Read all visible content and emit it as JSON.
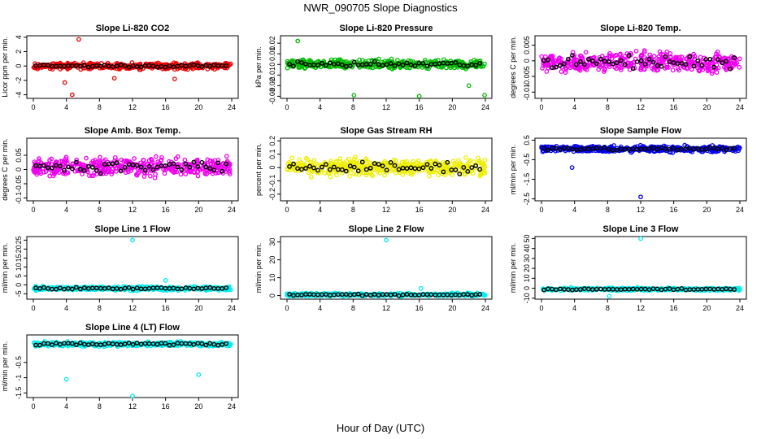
{
  "figure": {
    "title": "NWR_090705  Slope Diagnostics",
    "xlabel": "Hour of Day (UTC)"
  },
  "chart_data": [
    {
      "type": "scatter",
      "title": "Slope Li-820 CO2",
      "ylabel": "Licor ppm per min.",
      "xlim": [
        0,
        24
      ],
      "xticks": [
        0,
        4,
        8,
        12,
        16,
        20,
        24
      ],
      "ylim": [
        -4.5,
        4.2
      ],
      "yticks": [
        -4,
        -2,
        0,
        2,
        4
      ],
      "color": "#ee0000",
      "center": 0,
      "spread": 0.6,
      "ref_spread": 0.25,
      "outliers": [
        {
          "x": 5.5,
          "y": 3.7
        },
        {
          "x": 4.7,
          "y": -4.0
        },
        {
          "x": 3.8,
          "y": -2.3
        },
        {
          "x": 9.8,
          "y": -1.7
        },
        {
          "x": 17.1,
          "y": -1.8
        }
      ]
    },
    {
      "type": "scatter",
      "title": "Slope Li-820 Pressure",
      "ylabel": "kPa per min.",
      "xlim": [
        0,
        24
      ],
      "xticks": [
        0,
        4,
        8,
        12,
        16,
        20,
        24
      ],
      "ylim": [
        -0.032,
        0.027
      ],
      "yticks": [
        -0.03,
        -0.02,
        -0.01,
        0.0,
        0.01,
        0.02
      ],
      "color": "#00bb00",
      "center": 0,
      "spread": 0.006,
      "ref_spread": 0.004,
      "outliers": [
        {
          "x": 1.3,
          "y": 0.022
        },
        {
          "x": 8.1,
          "y": -0.029
        },
        {
          "x": 16.0,
          "y": -0.03
        },
        {
          "x": 23.9,
          "y": -0.029
        },
        {
          "x": 22.0,
          "y": -0.02
        }
      ]
    },
    {
      "type": "scatter",
      "title": "Slope Li-820 Temp.",
      "ylabel": "degrees C per min.",
      "xlim": [
        0,
        24
      ],
      "xticks": [
        0,
        4,
        8,
        12,
        16,
        20,
        24
      ],
      "ylim": [
        -0.012,
        0.008
      ],
      "yticks": [
        -0.01,
        -0.005,
        0.0,
        0.005
      ],
      "color": "#ee00ee",
      "center": -0.0005,
      "spread": 0.0045,
      "ref_spread": 0.003,
      "outliers": []
    },
    {
      "type": "scatter",
      "title": "Slope Amb. Box Temp.",
      "ylabel": "degrees C per min.",
      "xlim": [
        0,
        24
      ],
      "xticks": [
        0,
        4,
        8,
        12,
        16,
        20,
        24
      ],
      "ylim": [
        -0.11,
        0.11
      ],
      "yticks": [
        -0.1,
        -0.05,
        0.0,
        0.05
      ],
      "color": "#ee00ee",
      "center": 0.01,
      "spread": 0.045,
      "ref_spread": 0.03,
      "outliers": []
    },
    {
      "type": "scatter",
      "title": "Slope Gas Stream RH",
      "ylabel": "percent per min.",
      "xlim": [
        0,
        24
      ],
      "xticks": [
        0,
        4,
        8,
        12,
        16,
        20,
        24
      ],
      "ylim": [
        -0.25,
        0.22
      ],
      "yticks": [
        -0.2,
        -0.1,
        0.0,
        0.1,
        0.2
      ],
      "color": "#eeee00",
      "center": 0,
      "spread": 0.09,
      "ref_spread": 0.06,
      "outliers": []
    },
    {
      "type": "scatter",
      "title": "Slope Sample Flow",
      "ylabel": "ml/min per min.",
      "xlim": [
        0,
        24
      ],
      "xticks": [
        0,
        4,
        8,
        12,
        16,
        20,
        24
      ],
      "ylim": [
        -2.6,
        0.6
      ],
      "yticks": [
        -2.5,
        -1.5,
        -0.5,
        0.5
      ],
      "color": "#0000ee",
      "center": 0.05,
      "spread": 0.22,
      "ref_spread": 0.12,
      "outliers": [
        {
          "x": 12.0,
          "y": -2.4
        },
        {
          "x": 3.7,
          "y": -0.9
        }
      ]
    },
    {
      "type": "scatter",
      "title": "Slope Line 1 Flow",
      "ylabel": "ml/min per min.",
      "xlim": [
        0,
        24
      ],
      "xticks": [
        0,
        4,
        8,
        12,
        16,
        20,
        24
      ],
      "ylim": [
        -8,
        27
      ],
      "yticks": [
        -5,
        0,
        5,
        10,
        15,
        20,
        25
      ],
      "color": "#00eeee",
      "center": -2,
      "spread": 1.5,
      "ref_spread": 0.8,
      "outliers": [
        {
          "x": 12.0,
          "y": 25.0
        },
        {
          "x": 16.0,
          "y": 2.5
        }
      ]
    },
    {
      "type": "scatter",
      "title": "Slope Line 2 Flow",
      "ylabel": "ml/min per min.",
      "xlim": [
        0,
        24
      ],
      "xticks": [
        0,
        4,
        8,
        12,
        16,
        20,
        24
      ],
      "ylim": [
        -2,
        33
      ],
      "yticks": [
        0,
        10,
        20,
        30
      ],
      "color": "#00eeee",
      "center": 0.5,
      "spread": 1.2,
      "ref_spread": 0.7,
      "outliers": [
        {
          "x": 12.0,
          "y": 31.0
        },
        {
          "x": 16.2,
          "y": 4.0
        }
      ]
    },
    {
      "type": "scatter",
      "title": "Slope Line 3 Flow",
      "ylabel": "ml/min per min.",
      "xlim": [
        0,
        24
      ],
      "xticks": [
        0,
        4,
        8,
        12,
        16,
        20,
        24
      ],
      "ylim": [
        -11,
        52
      ],
      "yticks": [
        -10,
        0,
        10,
        20,
        30,
        40,
        50
      ],
      "color": "#00eeee",
      "center": -1,
      "spread": 2.0,
      "ref_spread": 1.0,
      "outliers": [
        {
          "x": 12.0,
          "y": 50.0
        },
        {
          "x": 8.2,
          "y": -8.0
        }
      ]
    },
    {
      "type": "scatter",
      "title": "Slope Line 4 (LT) Flow",
      "ylabel": "ml/min per min.",
      "xlim": [
        0,
        24
      ],
      "xticks": [
        0,
        4,
        8,
        12,
        16,
        20,
        24
      ],
      "ylim": [
        -1.65,
        0.4
      ],
      "yticks": [
        -1.5,
        -1.0,
        -0.5
      ],
      "color": "#00eeee",
      "center": 0.1,
      "spread": 0.1,
      "ref_spread": 0.06,
      "outliers": [
        {
          "x": 12.0,
          "y": -1.6
        },
        {
          "x": 4.0,
          "y": -1.05
        },
        {
          "x": 20.0,
          "y": -0.9
        }
      ]
    }
  ]
}
